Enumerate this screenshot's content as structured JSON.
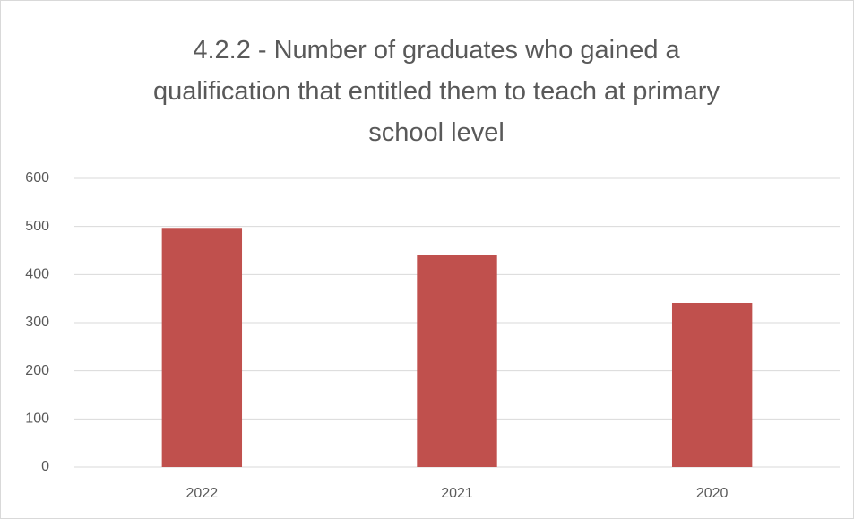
{
  "chart_data": {
    "type": "bar",
    "title": "4.2.2 - Number of graduates who gained a qualification that entitled them to teach at primary school level",
    "categories": [
      "2022",
      "2021",
      "2020"
    ],
    "values": [
      497,
      440,
      341
    ],
    "color": "#c0504d",
    "ylim": [
      0,
      600
    ],
    "yticks": [
      0,
      100,
      200,
      300,
      400,
      500,
      600
    ],
    "grid": true
  }
}
